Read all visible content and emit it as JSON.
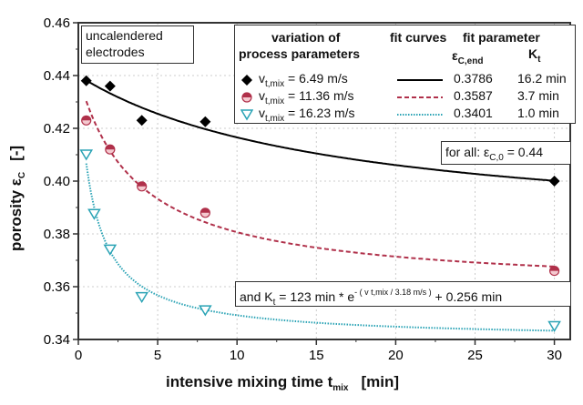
{
  "chart_data": {
    "type": "scatter",
    "xlabel": "intensive mixing time t",
    "xlabel_sub": "mix",
    "xlabel_unit": "[min]",
    "ylabel": "porosity ε",
    "ylabel_sub": "C",
    "ylabel_unit": "[-]",
    "xlim": [
      0,
      31
    ],
    "ylim": [
      0.34,
      0.46
    ],
    "xticks": [
      0,
      5,
      10,
      15,
      20,
      25,
      30
    ],
    "yticks": [
      0.34,
      0.36,
      0.38,
      0.4,
      0.42,
      0.44,
      0.46
    ],
    "xtick_labels": [
      "0",
      "5",
      "10",
      "15",
      "20",
      "25",
      "30"
    ],
    "ytick_labels": [
      "0.34",
      "0.36",
      "0.38",
      "0.40",
      "0.42",
      "0.44",
      "0.46"
    ],
    "grid": true,
    "epsilon_c0": 0.44,
    "series": [
      {
        "name": "6.49 m/s",
        "marker": "diamond",
        "color": "#000000",
        "line": "solid",
        "x": [
          0.5,
          2,
          4,
          8,
          30
        ],
        "y": [
          0.438,
          0.436,
          0.423,
          0.4225,
          0.4
        ],
        "eps_end": "0.3786",
        "kt": "16.2 min"
      },
      {
        "name": "11.36 m/s",
        "marker": "half-circle",
        "color": "#b0304a",
        "line": "dashed",
        "x": [
          0.5,
          2,
          4,
          8,
          30
        ],
        "y": [
          0.423,
          0.412,
          0.398,
          0.388,
          0.366
        ],
        "eps_end": "0.3587",
        "kt": "3.7 min"
      },
      {
        "name": "16.23 m/s",
        "marker": "triangle-down",
        "color": "#2aa3b5",
        "line": "dotted",
        "x": [
          0.5,
          1,
          2,
          4,
          8,
          30
        ],
        "y": [
          0.41,
          0.3875,
          0.374,
          0.356,
          0.351,
          0.345
        ],
        "eps_end": "0.3401",
        "kt": "1.0 min"
      }
    ]
  },
  "annotations": {
    "sample_box": [
      "uncalendered",
      "electrodes"
    ],
    "legend_h1": "variation of",
    "legend_h2": "process parameters",
    "legend_h3": "fit curves",
    "legend_h4": "fit parameter",
    "legend_eps": "ε",
    "legend_eps_sub": "C,end",
    "legend_kt": "K",
    "legend_kt_sub": "t",
    "v_label": "v",
    "v_sub": "t,mix",
    "v_eq": [
      "=   6.49 m/s",
      "= 11.36 m/s",
      "= 16.23 m/s"
    ],
    "forall": "for all:  ε",
    "forall_sub": "C,0",
    "forall_val": " = 0.44",
    "kt_formula_a": "and K",
    "kt_formula_sub": "t",
    "kt_formula_b": " = 123 min * e",
    "kt_formula_sup": "- ( v t,mix / 3.18 m/s )",
    "kt_formula_c": " + 0.256 min"
  }
}
